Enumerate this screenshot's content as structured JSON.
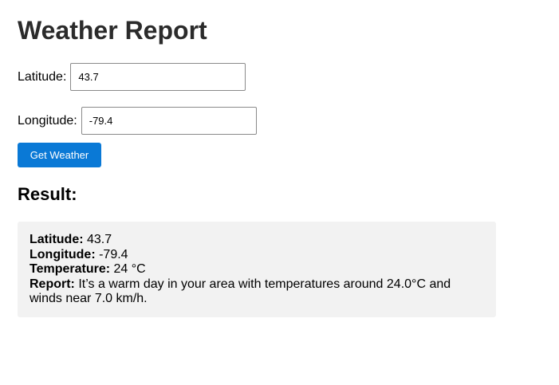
{
  "header": {
    "title": "Weather Report"
  },
  "form": {
    "latitude_label": "Latitude:",
    "latitude_value": "43.7",
    "longitude_label": "Longitude:",
    "longitude_value": "-79.4",
    "submit_label": "Get Weather"
  },
  "result": {
    "heading": "Result:",
    "latitude_label": "Latitude:",
    "latitude_value": "43.7",
    "longitude_label": "Longitude:",
    "longitude_value": "-79.4",
    "temperature_label": "Temperature:",
    "temperature_value": "24 °C",
    "report_label": "Report:",
    "report_value": "It’s a warm day in your area with temperatures around 24.0°C and winds near 7.0 km/h."
  },
  "colors": {
    "button_bg": "#0a79d6",
    "result_bg": "#f2f2f2",
    "title_text": "#2b2b2b"
  }
}
